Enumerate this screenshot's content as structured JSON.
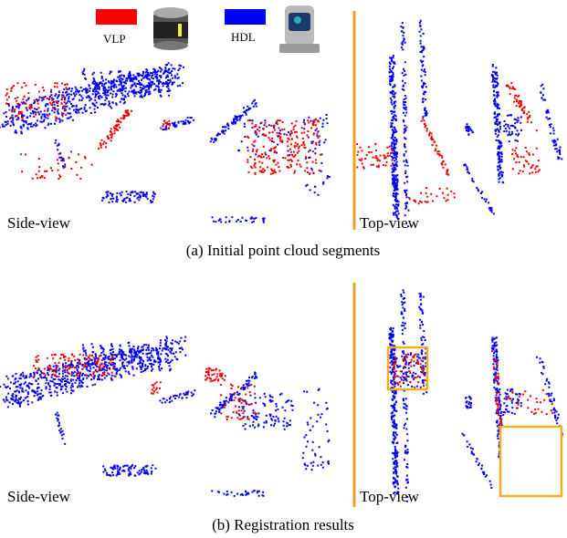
{
  "legend": {
    "vlp": "VLP",
    "hdl": "HDL"
  },
  "panels": [
    {
      "side_label": "Side-view",
      "top_label": "Top-view",
      "caption": "(a) Initial point cloud segments"
    },
    {
      "side_label": "Side-view",
      "top_label": "Top-view",
      "caption": "(b) Registration results"
    }
  ]
}
